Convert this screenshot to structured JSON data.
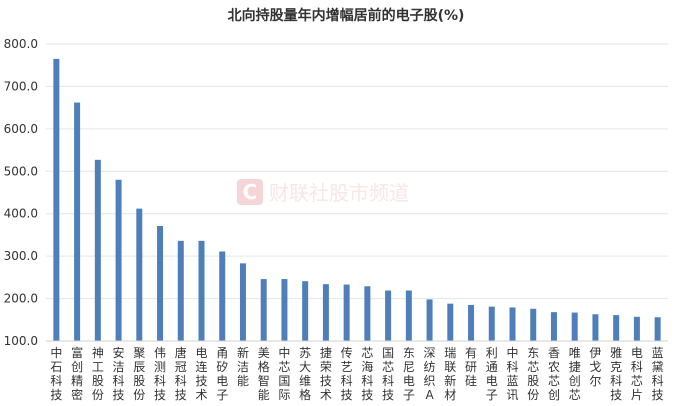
{
  "chart_data": {
    "type": "bar",
    "title": "北向持股量年内增幅居前的电子股(%)",
    "categories": [
      "中石科技",
      "富创精密",
      "神工股份",
      "安洁科技",
      "聚辰股份",
      "伟测科技",
      "唐冠科技",
      "电连技术",
      "甬矽电子",
      "新洁能",
      "美格智能",
      "中芯国际",
      "苏大维格",
      "捷荣技术",
      "传艺科技",
      "芯海科技",
      "国芯科技",
      "东尼电子",
      "深纺织A",
      "瑞联新材",
      "有研硅",
      "利通电子",
      "中科蓝讯",
      "东芯股份",
      "香农芯创",
      "唯捷创芯",
      "伊戈尔",
      "雅克科技",
      "电科芯片",
      "蓝黛科技"
    ],
    "values": [
      765,
      662,
      527,
      480,
      412,
      371,
      336,
      336,
      311,
      283,
      246,
      246,
      241,
      234,
      233,
      229,
      219,
      219,
      198,
      188,
      185,
      181,
      179,
      176,
      168,
      167,
      163,
      161,
      157,
      156
    ],
    "ylim": [
      100,
      800
    ],
    "yticks": [
      "100.0",
      "200.0",
      "300.0",
      "400.0",
      "500.0",
      "600.0",
      "700.0",
      "800.0"
    ],
    "bar_color": "#4e7fbb",
    "grid": true,
    "xlabel": "",
    "ylabel": ""
  },
  "watermark": {
    "text": "财联社股市频道",
    "icon": "c-logo-icon",
    "color": "#e9a3a3"
  }
}
